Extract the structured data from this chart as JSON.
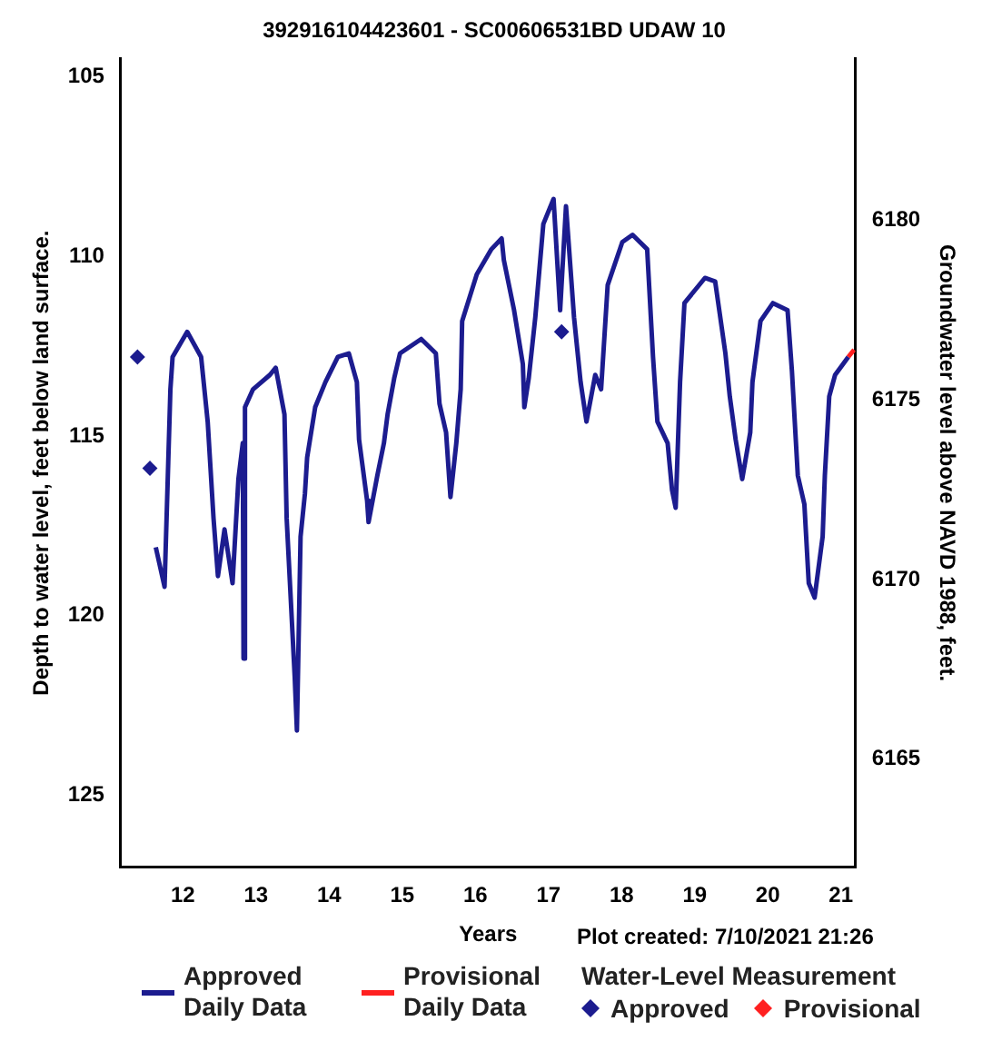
{
  "chart_data": {
    "type": "line",
    "title": "392916104423601 - SC00606531BD UDAW 10",
    "xlabel": "Years",
    "ylabel": "Depth to water level, feet below land surface.",
    "y2label": "Groundwater level above NAVD 1988, feet.",
    "legend_title": "Water-Level Measurement",
    "annotations": [
      "Plot created: 7/10/2021 21:26"
    ],
    "xlim": [
      11.15,
      21.2
    ],
    "xticks": [
      12,
      13,
      14,
      15,
      16,
      17,
      18,
      19,
      20,
      21
    ],
    "ylim": [
      127,
      104.5
    ],
    "yticks": [
      105,
      110,
      115,
      120,
      125
    ],
    "y2lim": [
      6162,
      6184.5
    ],
    "y2ticks": [
      6165,
      6170,
      6175,
      6180
    ],
    "grid": false,
    "legend": "bottom",
    "series": [
      {
        "name": "Approved Daily Data",
        "marker": "none",
        "color": "#1c1c8f",
        "x": [
          11.63,
          11.75,
          11.83,
          11.86,
          12.06,
          12.25,
          12.34,
          12.42,
          12.48,
          12.57,
          12.68,
          12.76,
          12.82,
          12.83,
          12.85,
          12.96,
          13.19,
          13.27,
          13.39,
          13.42,
          13.53,
          13.56,
          13.61,
          13.67,
          13.7,
          13.81,
          13.95,
          14.12,
          14.27,
          14.38,
          14.41,
          14.52,
          14.54,
          14.66,
          14.75,
          14.8,
          14.89,
          14.97,
          15.26,
          15.46,
          15.51,
          15.6,
          15.66,
          15.74,
          15.8,
          15.82,
          16.02,
          16.22,
          16.36,
          16.39,
          16.53,
          16.65,
          16.67,
          16.73,
          16.82,
          16.93,
          17.07,
          17.16,
          17.24,
          17.35,
          17.44,
          17.52,
          17.64,
          17.72,
          17.81,
          18.01,
          18.15,
          18.35,
          18.43,
          18.49,
          18.63,
          18.69,
          18.74,
          18.8,
          18.86,
          19.14,
          19.28,
          19.42,
          19.48,
          19.56,
          19.65,
          19.76,
          19.79,
          19.9,
          20.07,
          20.27,
          20.33,
          20.41,
          20.5,
          20.56,
          20.64,
          20.75,
          20.78,
          20.84,
          20.92,
          21.1
        ],
        "values": [
          118.1,
          119.2,
          113.7,
          112.8,
          112.1,
          112.8,
          114.6,
          117.3,
          118.9,
          117.6,
          119.1,
          116.2,
          115.2,
          121.2,
          114.2,
          113.7,
          113.3,
          113.1,
          114.4,
          117.3,
          121.7,
          123.2,
          117.8,
          116.6,
          115.6,
          114.2,
          113.5,
          112.8,
          112.7,
          113.5,
          115.1,
          116.8,
          117.4,
          116.1,
          115.2,
          114.4,
          113.4,
          112.7,
          112.3,
          112.7,
          114.1,
          114.9,
          116.7,
          115.2,
          113.7,
          111.8,
          110.5,
          109.8,
          109.5,
          110.1,
          111.5,
          113,
          114.2,
          113.4,
          111.7,
          109.1,
          108.4,
          111.5,
          108.6,
          111.7,
          113.5,
          114.6,
          113.3,
          113.7,
          110.8,
          109.6,
          109.4,
          109.8,
          112.8,
          114.6,
          115.2,
          116.5,
          117,
          113.5,
          111.3,
          110.6,
          110.7,
          112.7,
          113.9,
          115.1,
          116.2,
          114.9,
          113.5,
          111.8,
          111.3,
          111.5,
          113.2,
          116.1,
          116.9,
          119.1,
          119.5,
          117.8,
          116.1,
          113.9,
          113.3,
          112.8
        ]
      },
      {
        "name": "Provisional Daily Data",
        "marker": "none",
        "color": "#ff2020",
        "x": [
          21.1,
          21.14,
          21.18
        ],
        "values": [
          112.8,
          112.7,
          112.6
        ]
      },
      {
        "name": "Approved",
        "type": "scatter",
        "marker": "diamond",
        "color": "#1c1c8f",
        "x": [
          11.38,
          11.55,
          17.18
        ],
        "values": [
          112.8,
          115.9,
          112.1
        ]
      },
      {
        "name": "Provisional",
        "type": "scatter",
        "marker": "diamond",
        "color": "#ff2020"
      }
    ]
  }
}
